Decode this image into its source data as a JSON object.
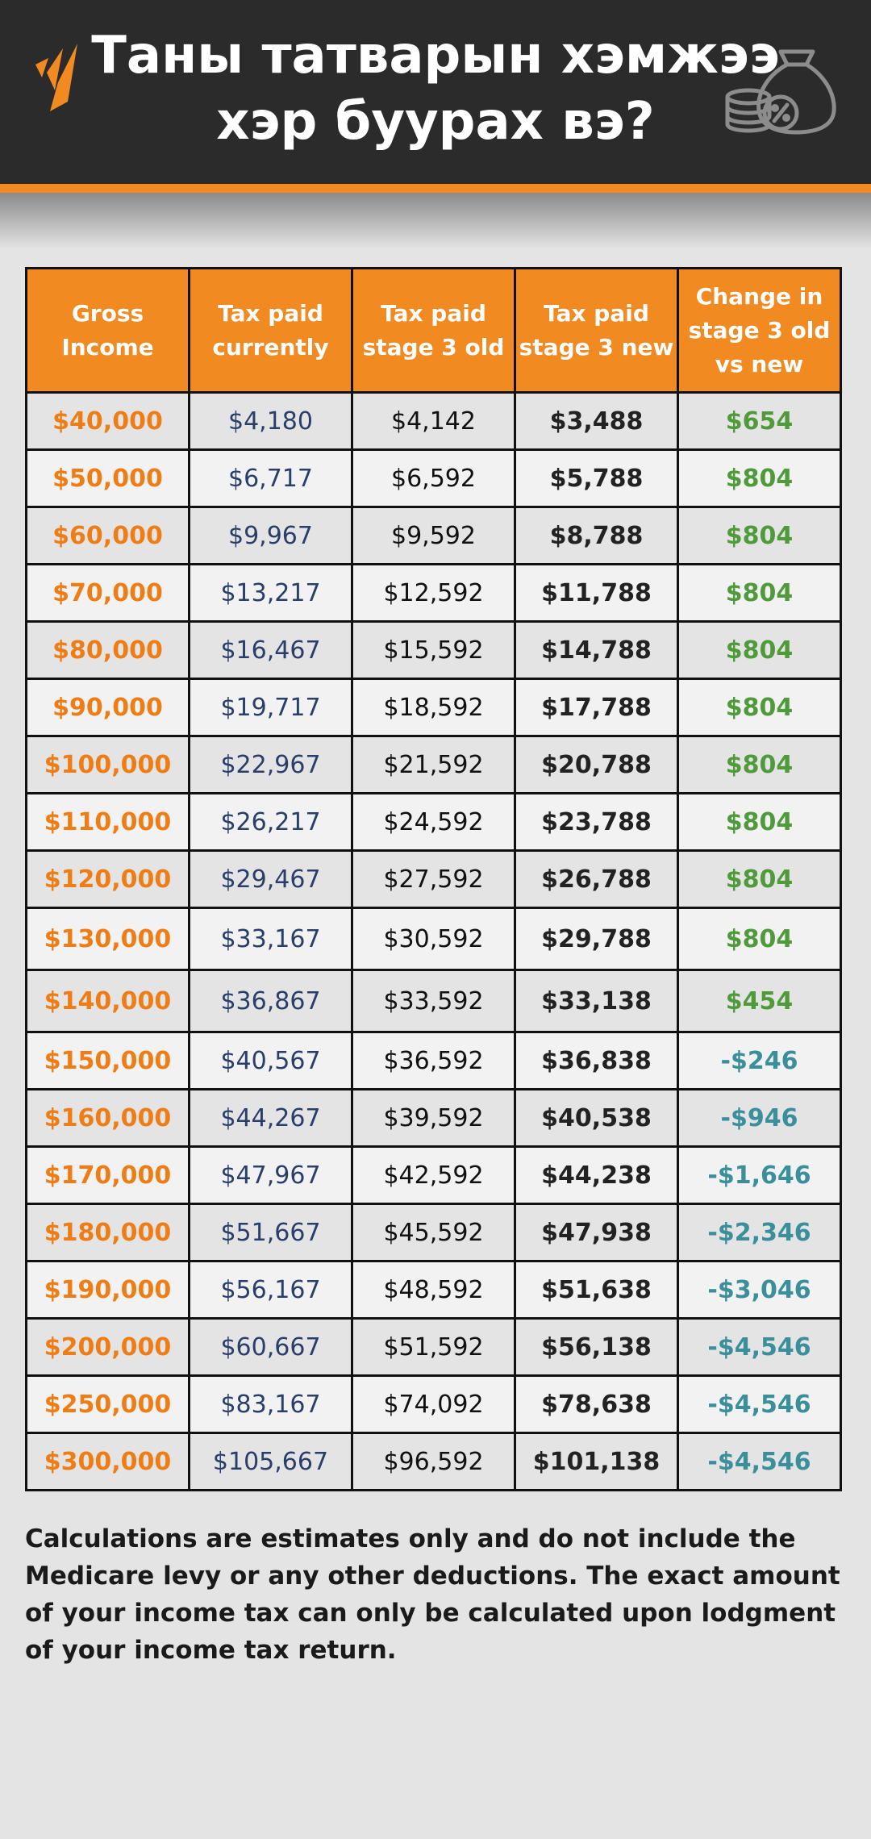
{
  "header": {
    "title": "Таны татварын хэмжээ\nхэр буурах вэ?",
    "logo_icon": "sbs-flame-logo-icon",
    "decor_icon": "money-bag-percent-icon",
    "colors": {
      "background": "#2b2b2b",
      "accent": "#f28a22",
      "text": "#ffffff"
    }
  },
  "table": {
    "columns": [
      "Gross\nIncome",
      "Tax paid\ncurrently",
      "Tax paid\nstage 3 old",
      "Tax paid\nstage 3 new",
      "Change in\nstage 3 old\nvs new"
    ],
    "rows": [
      {
        "gross": "$40,000",
        "current": "$4,180",
        "old": "$4,142",
        "new": "$3,488",
        "change": "$654"
      },
      {
        "gross": "$50,000",
        "current": "$6,717",
        "old": "$6,592",
        "new": "$5,788",
        "change": "$804"
      },
      {
        "gross": "$60,000",
        "current": "$9,967",
        "old": "$9,592",
        "new": "$8,788",
        "change": "$804"
      },
      {
        "gross": "$70,000",
        "current": "$13,217",
        "old": "$12,592",
        "new": "$11,788",
        "change": "$804"
      },
      {
        "gross": "$80,000",
        "current": "$16,467",
        "old": "$15,592",
        "new": "$14,788",
        "change": "$804"
      },
      {
        "gross": "$90,000",
        "current": "$19,717",
        "old": "$18,592",
        "new": "$17,788",
        "change": "$804"
      },
      {
        "gross": "$100,000",
        "current": "$22,967",
        "old": "$21,592",
        "new": "$20,788",
        "change": "$804"
      },
      {
        "gross": "$110,000",
        "current": "$26,217",
        "old": "$24,592",
        "new": "$23,788",
        "change": "$804"
      },
      {
        "gross": "$120,000",
        "current": "$29,467",
        "old": "$27,592",
        "new": "$26,788",
        "change": "$804"
      },
      {
        "gross": "$130,000",
        "current": "$33,167",
        "old": "$30,592",
        "new": "$29,788",
        "change": "$804"
      },
      {
        "gross": "$140,000",
        "current": "$36,867",
        "old": "$33,592",
        "new": "$33,138",
        "change": "$454"
      },
      {
        "gross": "$150,000",
        "current": "$40,567",
        "old": "$36,592",
        "new": "$36,838",
        "change": "-$246"
      },
      {
        "gross": "$160,000",
        "current": "$44,267",
        "old": "$39,592",
        "new": "$40,538",
        "change": "-$946"
      },
      {
        "gross": "$170,000",
        "current": "$47,967",
        "old": "$42,592",
        "new": "$44,238",
        "change": "-$1,646"
      },
      {
        "gross": "$180,000",
        "current": "$51,667",
        "old": "$45,592",
        "new": "$47,938",
        "change": "-$2,346"
      },
      {
        "gross": "$190,000",
        "current": "$56,167",
        "old": "$48,592",
        "new": "$51,638",
        "change": "-$3,046"
      },
      {
        "gross": "$200,000",
        "current": "$60,667",
        "old": "$51,592",
        "new": "$56,138",
        "change": "-$4,546"
      },
      {
        "gross": "$250,000",
        "current": "$83,167",
        "old": "$74,092",
        "new": "$78,638",
        "change": "-$4,546"
      },
      {
        "gross": "$300,000",
        "current": "$105,667",
        "old": "$96,592",
        "new": "$101,138",
        "change": "-$4,546"
      }
    ],
    "colors": {
      "header_bg": "#f28a22",
      "gross": "#ef7d16",
      "current": "#2a3e6a",
      "positive_change": "#4f9a3a",
      "negative_change": "#3a8f9a"
    }
  },
  "footnote": "Calculations are estimates only and do not include the Medicare levy or any other deductions.  The exact amount of your income tax can only be calculated upon lodgment of your income tax return."
}
